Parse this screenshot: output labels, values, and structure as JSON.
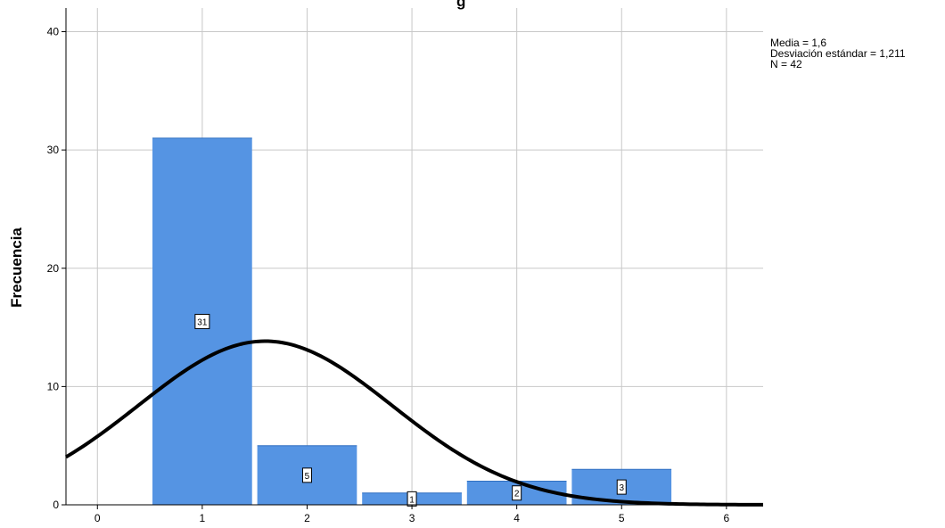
{
  "chart_data": {
    "type": "bar",
    "title_fragment": "g",
    "xlabel": "",
    "ylabel": "Frecuencia",
    "x_ticks": [
      "0",
      "1",
      "2",
      "3",
      "4",
      "5",
      "6"
    ],
    "y_ticks": [
      "0",
      "10",
      "20",
      "30",
      "40"
    ],
    "xlim": [
      -0.3,
      6.35
    ],
    "ylim": [
      0,
      42
    ],
    "grid": true,
    "bars": [
      {
        "x": 1,
        "value": 31,
        "label": "31"
      },
      {
        "x": 2,
        "value": 5,
        "label": "5"
      },
      {
        "x": 3,
        "value": 1,
        "label": "1"
      },
      {
        "x": 4,
        "value": 2,
        "label": "2"
      },
      {
        "x": 5,
        "value": 3,
        "label": "3"
      }
    ],
    "normal_curve": {
      "mean": 1.6,
      "sd": 1.211,
      "n": 42,
      "bin_width": 1
    },
    "stats": {
      "mean_label": "Media = 1,6",
      "sd_label": "Desviación estándar = 1,211",
      "n_label": "N = 42"
    },
    "colors": {
      "bar": "#5594e3",
      "curve": "#000000",
      "grid": "#c8c8c8"
    }
  }
}
